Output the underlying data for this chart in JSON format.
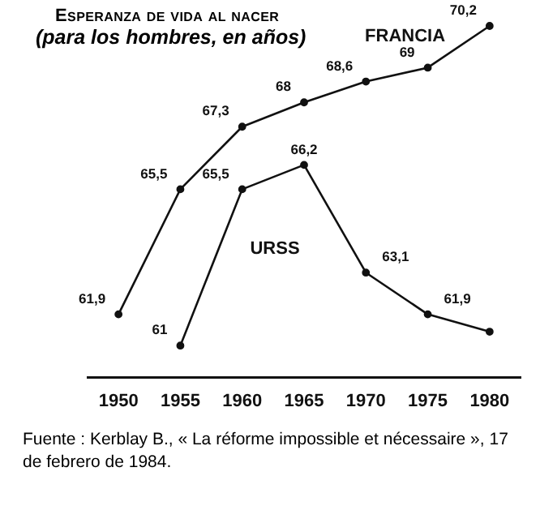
{
  "chart_data": {
    "type": "line",
    "title": "Esperanza de vida al nacer",
    "subtitle": "(para los hombres, en años)",
    "categories": [
      "1950",
      "1955",
      "1960",
      "1965",
      "1970",
      "1975",
      "1980"
    ],
    "series": [
      {
        "name": "FRANCIA",
        "color": "#111111",
        "values": [
          61.9,
          65.5,
          67.3,
          68,
          68.6,
          69,
          70.2
        ],
        "value_labels": [
          "61,9",
          "65,5",
          "67,3",
          "68",
          "68,6",
          "69",
          "70,2"
        ]
      },
      {
        "name": "URSS",
        "color": "#111111",
        "values": [
          null,
          61,
          65.5,
          66.2,
          63.1,
          61.9,
          61.4
        ],
        "value_labels": [
          null,
          "61",
          "65,5",
          "66,2",
          "63,1",
          "61,9",
          null
        ]
      }
    ],
    "tick_labels": "x",
    "grid": false,
    "legend": false,
    "marker": "circle",
    "line_style": "solid",
    "annotations": [
      "Fuente : Kerblay B., « La réforme impossible et nécessaire », 17 de febrero de 1984."
    ]
  }
}
